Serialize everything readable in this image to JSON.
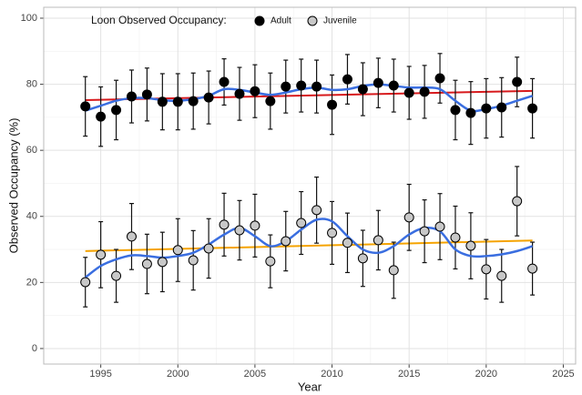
{
  "chart_data": {
    "type": "scatter",
    "x_label": "Year",
    "y_label": "Observed Occupancy (%)",
    "legend_title": "Loon Observed Occupancy:",
    "legend_position": "top",
    "grid": true,
    "xlim": [
      1991.3,
      2025.8
    ],
    "ylim": [
      -4.7,
      103.3
    ],
    "xticks": [
      1995,
      2000,
      2005,
      2010,
      2015,
      2020,
      2025
    ],
    "yticks": [
      0,
      20,
      40,
      60,
      80,
      100
    ],
    "x": [
      1994,
      1995,
      1996,
      1997,
      1998,
      1999,
      2000,
      2001,
      2002,
      2003,
      2004,
      2005,
      2006,
      2007,
      2008,
      2009,
      2010,
      2011,
      2012,
      2013,
      2014,
      2015,
      2016,
      2017,
      2018,
      2019,
      2020,
      2021,
      2022,
      2023
    ],
    "series": [
      {
        "name": "Adult",
        "color": "#000000",
        "values": [
          73.3,
          70.2,
          72.2,
          76.3,
          76.9,
          74.7,
          74.7,
          74.9,
          76,
          80.7,
          77.1,
          77.9,
          74.9,
          79.3,
          79.6,
          79.3,
          73.8,
          81.5,
          78.5,
          80.4,
          79.6,
          77.4,
          77.7,
          81.8,
          72.2,
          71.3,
          72.7,
          73,
          80.7,
          72.7
        ],
        "errors": [
          9,
          9,
          9,
          8,
          8,
          8.5,
          8.5,
          8.5,
          8,
          7,
          8,
          8,
          8.5,
          8,
          8,
          8,
          9,
          7.5,
          8,
          7.5,
          8,
          8,
          8,
          7.5,
          9,
          9.5,
          9,
          9,
          7.5,
          9
        ],
        "trend": [
          75.2,
          78.0
        ],
        "trend_color": "#d7191c",
        "smooth": [
          72,
          73.5,
          75,
          75.8,
          75.8,
          75.2,
          75,
          75.5,
          76.5,
          78.5,
          78.3,
          77.5,
          76.8,
          77.5,
          78.5,
          79,
          78.3,
          78.5,
          79.5,
          80,
          79.5,
          79,
          79,
          78.5,
          75,
          72,
          72.5,
          73.5,
          75,
          76.5
        ],
        "smooth_color": "#3a6ee0"
      },
      {
        "name": "Juvenile",
        "color": "#c8c8c8",
        "values": [
          20.1,
          28.4,
          22,
          33.9,
          25.6,
          26.2,
          29.8,
          26.7,
          30.3,
          37.5,
          35.8,
          37.2,
          26.4,
          32.5,
          38,
          41.9,
          35,
          32,
          27.3,
          32.8,
          23.7,
          39.7,
          35.5,
          36.9,
          33.6,
          31.1,
          24,
          22,
          44.6,
          24.2
        ],
        "errors": [
          7.5,
          10,
          8,
          10,
          9,
          9,
          9.5,
          9,
          9,
          9.5,
          9,
          9.5,
          8,
          9,
          9.5,
          10,
          9.5,
          9,
          8.5,
          9,
          8.5,
          10,
          9.5,
          10,
          9.5,
          10,
          9,
          8,
          10.5,
          8
        ],
        "trend": [
          29.5,
          32.7
        ],
        "trend_color": "#f5a300",
        "smooth": [
          21.5,
          25,
          27,
          28.2,
          28,
          27.5,
          28,
          29,
          31.5,
          34.5,
          36.5,
          34,
          31,
          32.5,
          36,
          39,
          38.5,
          34,
          30,
          29,
          31,
          34.5,
          36.5,
          35.5,
          30,
          28,
          28,
          28.5,
          29.5,
          31
        ],
        "smooth_color": "#3a6ee0"
      }
    ]
  }
}
